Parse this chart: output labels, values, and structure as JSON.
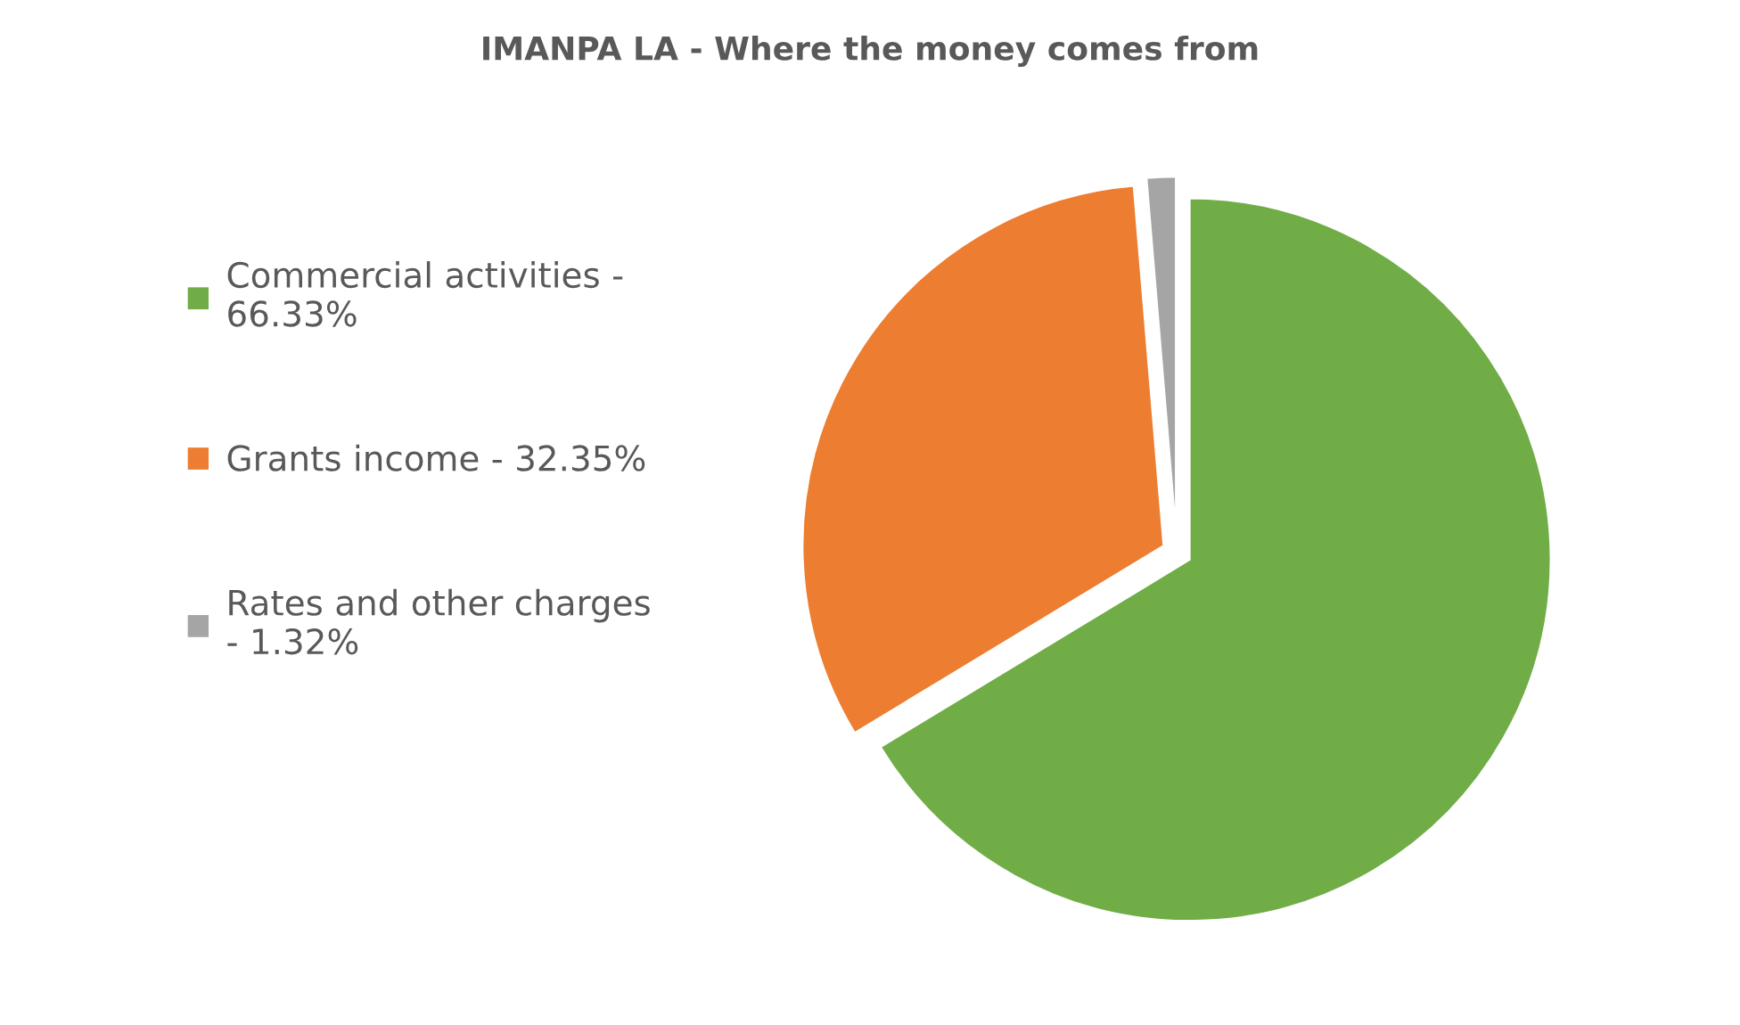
{
  "chart_data": {
    "type": "pie",
    "title": "IMANPA LA - Where the money comes from",
    "categories": [
      "Commercial activities - 66.33%",
      "Grants income - 32.35%",
      "Rates and other charges - 1.32%"
    ],
    "values": [
      66.33,
      32.35,
      1.32
    ],
    "colors": [
      "#70ad47",
      "#ed7d31",
      "#a5a5a5"
    ],
    "legend": "left"
  }
}
